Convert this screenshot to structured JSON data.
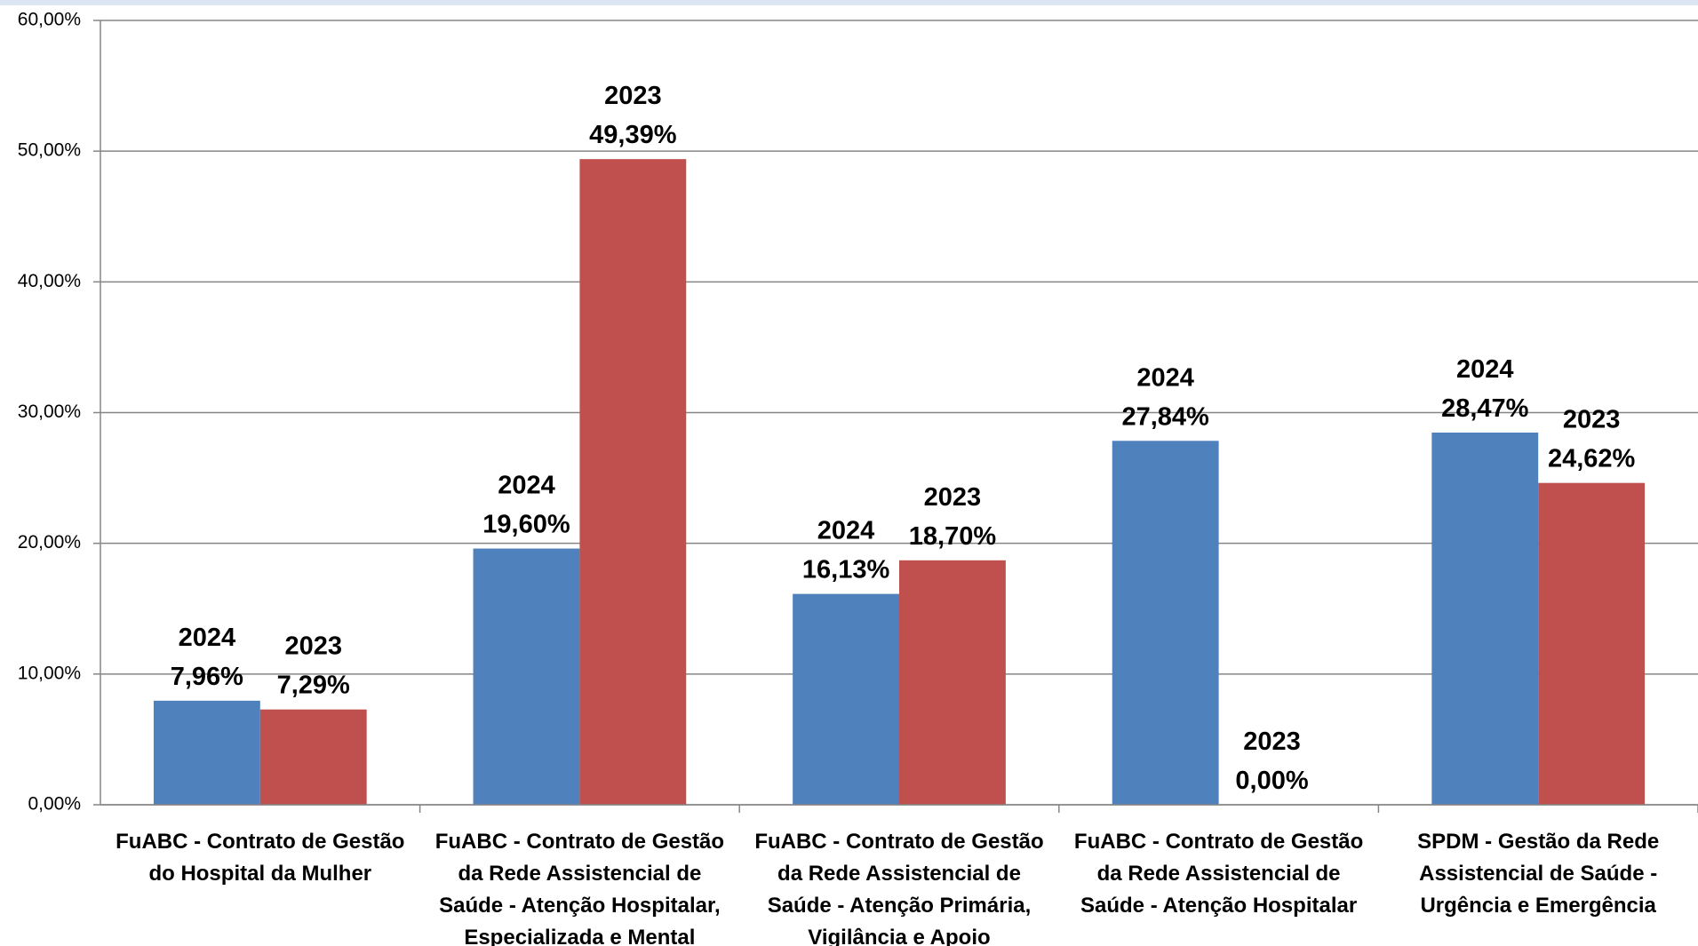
{
  "chart_data": {
    "type": "bar",
    "categories": [
      "FuABC - Contrato de Gestão do Hospital da Mulher",
      "FuABC - Contrato de Gestão da Rede Assistencial de Saúde - Atenção Hospitalar, Especializada e Mental",
      "FuABC - Contrato de Gestão da Rede Assistencial de Saúde - Atenção Primária, Vigilância e Apoio",
      "FuABC - Contrato de Gestão da Rede Assistencial de Saúde - Atenção Hospitalar",
      "SPDM - Gestão da Rede Assistencial de Saúde - Urgência e Emergência"
    ],
    "series": [
      {
        "name": "2024",
        "color": "#4f81bd",
        "values": [
          7.96,
          19.6,
          16.13,
          27.84,
          28.47
        ],
        "value_labels": [
          "7,96%",
          "19,60%",
          "16,13%",
          "27,84%",
          "28,47%"
        ]
      },
      {
        "name": "2023",
        "color": "#c0504d",
        "values": [
          7.29,
          49.39,
          18.7,
          0,
          24.62
        ],
        "value_labels": [
          "7,29%",
          "49,39%",
          "18,70%",
          "0,00%",
          "24,62%"
        ]
      }
    ],
    "ylim": [
      0,
      60
    ],
    "yticks": [
      {
        "value": 0,
        "label": "0,00%"
      },
      {
        "value": 10,
        "label": "10,00%"
      },
      {
        "value": 20,
        "label": "20,00%"
      },
      {
        "value": 30,
        "label": "30,00%"
      },
      {
        "value": 40,
        "label": "40,00%"
      },
      {
        "value": 50,
        "label": "50,00%"
      },
      {
        "value": 60,
        "label": "60,00%"
      }
    ],
    "grid": true
  }
}
